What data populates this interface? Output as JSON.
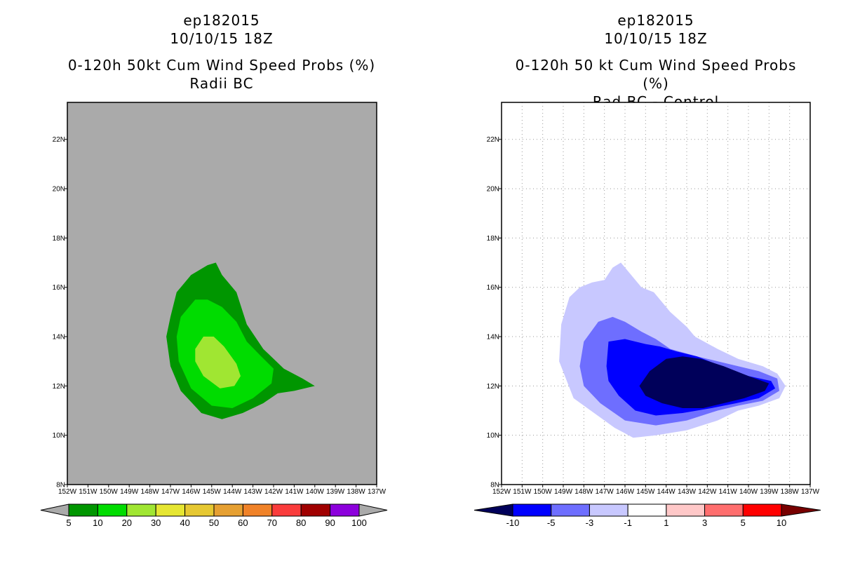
{
  "chart_data": [
    {
      "type": "filled-contour-map",
      "title_lines": [
        "ep182015",
        "10/10/15 18Z",
        "0-120h 50kt Cum Wind Speed Probs (%)",
        "Radii BC"
      ],
      "lon_ticks": [
        "152W",
        "151W",
        "150W",
        "149W",
        "148W",
        "147W",
        "146W",
        "145W",
        "144W",
        "143W",
        "142W",
        "141W",
        "140W",
        "139W",
        "138W",
        "137W"
      ],
      "lat_ticks": [
        "8N",
        "10N",
        "12N",
        "14N",
        "16N",
        "18N",
        "20N",
        "22N"
      ],
      "xlim": [
        -152,
        -137
      ],
      "ylim": [
        8,
        23.5
      ],
      "background_color": "#aaaaaa",
      "grid": false,
      "colorbar": {
        "levels": [
          "5",
          "10",
          "20",
          "30",
          "40",
          "50",
          "60",
          "70",
          "80",
          "90",
          "100"
        ],
        "colors": [
          "#009600",
          "#00dc00",
          "#a0e632",
          "#e6e632",
          "#e6c832",
          "#e6a032",
          "#f08228",
          "#fa3c3c",
          "#a00000",
          "#8c00dc"
        ]
      },
      "contours": [
        {
          "level": "5",
          "color": "#009600",
          "points": [
            [
              -147.2,
              14.0
            ],
            [
              -147.0,
              14.8
            ],
            [
              -146.7,
              15.8
            ],
            [
              -146.0,
              16.5
            ],
            [
              -145.2,
              16.9
            ],
            [
              -144.8,
              17.0
            ],
            [
              -144.5,
              16.5
            ],
            [
              -143.8,
              15.8
            ],
            [
              -143.3,
              14.5
            ],
            [
              -142.5,
              13.5
            ],
            [
              -141.5,
              12.7
            ],
            [
              -140.6,
              12.3
            ],
            [
              -140.0,
              12.0
            ],
            [
              -141.0,
              11.8
            ],
            [
              -141.8,
              11.7
            ],
            [
              -142.5,
              11.3
            ],
            [
              -143.5,
              10.9
            ],
            [
              -144.5,
              10.65
            ],
            [
              -145.5,
              10.9
            ],
            [
              -146.5,
              11.8
            ],
            [
              -147.0,
              12.8
            ]
          ]
        },
        {
          "level": "10",
          "color": "#00dc00",
          "points": [
            [
              -146.7,
              14.0
            ],
            [
              -146.5,
              14.8
            ],
            [
              -145.8,
              15.5
            ],
            [
              -145.2,
              15.5
            ],
            [
              -144.5,
              15.2
            ],
            [
              -143.8,
              14.6
            ],
            [
              -143.3,
              13.8
            ],
            [
              -142.6,
              13.2
            ],
            [
              -142.0,
              12.7
            ],
            [
              -142.1,
              12.1
            ],
            [
              -143.0,
              11.5
            ],
            [
              -144.0,
              11.1
            ],
            [
              -145.0,
              11.2
            ],
            [
              -146.0,
              11.9
            ],
            [
              -146.6,
              13.0
            ]
          ]
        },
        {
          "level": "20",
          "color": "#a0e632",
          "points": [
            [
              -145.8,
              13.5
            ],
            [
              -145.4,
              14.0
            ],
            [
              -144.9,
              14.0
            ],
            [
              -144.4,
              13.6
            ],
            [
              -143.8,
              12.9
            ],
            [
              -143.6,
              12.4
            ],
            [
              -143.9,
              12.0
            ],
            [
              -144.6,
              11.9
            ],
            [
              -145.4,
              12.4
            ],
            [
              -145.8,
              13.0
            ]
          ]
        }
      ]
    },
    {
      "type": "filled-contour-map",
      "title_lines": [
        "ep182015",
        "10/10/15 18Z",
        "0-120h 50 kt Cum Wind Speed Probs (%)",
        "Rad BC - Control"
      ],
      "lon_ticks": [
        "152W",
        "151W",
        "150W",
        "149W",
        "148W",
        "147W",
        "146W",
        "145W",
        "144W",
        "143W",
        "142W",
        "141W",
        "140W",
        "139W",
        "138W",
        "137W"
      ],
      "lat_ticks": [
        "8N",
        "10N",
        "12N",
        "14N",
        "16N",
        "18N",
        "20N",
        "22N"
      ],
      "xlim": [
        -152,
        -137
      ],
      "ylim": [
        8,
        23.5
      ],
      "background_color": "#ffffff",
      "grid": true,
      "colorbar": {
        "levels": [
          "-10",
          "-5",
          "-3",
          "-1",
          "1",
          "3",
          "5",
          "10"
        ],
        "colors": [
          "#00005a",
          "#0000ff",
          "#6e6eff",
          "#c8c8ff",
          "#ffffff",
          "#ffc8c8",
          "#ff6e6e",
          "#ff0000",
          "#780000"
        ]
      },
      "contours": [
        {
          "level": "-1",
          "color": "#c8c8ff",
          "points": [
            [
              -149.2,
              13.0
            ],
            [
              -149.1,
              14.5
            ],
            [
              -148.7,
              15.6
            ],
            [
              -148.2,
              16.0
            ],
            [
              -147.6,
              16.2
            ],
            [
              -147.0,
              16.3
            ],
            [
              -146.6,
              16.8
            ],
            [
              -146.2,
              17.0
            ],
            [
              -145.8,
              16.6
            ],
            [
              -145.2,
              16.0
            ],
            [
              -144.6,
              15.8
            ],
            [
              -143.8,
              15.0
            ],
            [
              -143.0,
              14.4
            ],
            [
              -142.6,
              14.0
            ],
            [
              -141.5,
              13.5
            ],
            [
              -140.5,
              13.1
            ],
            [
              -139.3,
              12.8
            ],
            [
              -138.6,
              12.5
            ],
            [
              -138.2,
              12.0
            ],
            [
              -138.5,
              11.5
            ],
            [
              -139.5,
              11.2
            ],
            [
              -140.5,
              11.0
            ],
            [
              -141.5,
              10.6
            ],
            [
              -143.0,
              10.2
            ],
            [
              -144.5,
              10.0
            ],
            [
              -145.6,
              9.9
            ],
            [
              -146.5,
              10.3
            ],
            [
              -147.5,
              10.9
            ],
            [
              -148.5,
              11.5
            ]
          ]
        },
        {
          "level": "-3",
          "color": "#6e6eff",
          "points": [
            [
              -148.2,
              12.8
            ],
            [
              -148.0,
              13.8
            ],
            [
              -147.3,
              14.6
            ],
            [
              -146.6,
              14.8
            ],
            [
              -146.0,
              14.6
            ],
            [
              -145.2,
              14.2
            ],
            [
              -144.5,
              13.9
            ],
            [
              -143.8,
              13.5
            ],
            [
              -142.5,
              13.2
            ],
            [
              -141.0,
              12.9
            ],
            [
              -139.5,
              12.6
            ],
            [
              -138.6,
              12.3
            ],
            [
              -138.5,
              11.8
            ],
            [
              -139.3,
              11.4
            ],
            [
              -140.5,
              11.2
            ],
            [
              -141.5,
              11.0
            ],
            [
              -143.0,
              10.6
            ],
            [
              -144.5,
              10.4
            ],
            [
              -146.0,
              10.6
            ],
            [
              -147.2,
              11.3
            ],
            [
              -148.0,
              12.0
            ]
          ]
        },
        {
          "level": "-5",
          "color": "#0000ff",
          "points": [
            [
              -146.9,
              12.8
            ],
            [
              -146.8,
              13.8
            ],
            [
              -146.0,
              13.9
            ],
            [
              -145.0,
              13.7
            ],
            [
              -144.3,
              13.6
            ],
            [
              -143.5,
              13.4
            ],
            [
              -142.5,
              13.2
            ],
            [
              -141.3,
              12.8
            ],
            [
              -140.0,
              12.4
            ],
            [
              -138.9,
              12.2
            ],
            [
              -138.7,
              11.9
            ],
            [
              -139.5,
              11.5
            ],
            [
              -140.6,
              11.3
            ],
            [
              -141.8,
              11.1
            ],
            [
              -143.2,
              10.9
            ],
            [
              -144.5,
              10.8
            ],
            [
              -145.5,
              11.0
            ],
            [
              -146.3,
              11.6
            ],
            [
              -146.8,
              12.2
            ]
          ]
        },
        {
          "level": "-10",
          "color": "#00005a",
          "points": [
            [
              -145.3,
              12.0
            ],
            [
              -144.8,
              12.6
            ],
            [
              -144.0,
              13.1
            ],
            [
              -143.2,
              13.2
            ],
            [
              -142.3,
              13.1
            ],
            [
              -141.2,
              12.8
            ],
            [
              -140.0,
              12.4
            ],
            [
              -139.0,
              12.1
            ],
            [
              -139.2,
              11.8
            ],
            [
              -140.2,
              11.5
            ],
            [
              -141.2,
              11.3
            ],
            [
              -142.2,
              11.1
            ],
            [
              -143.2,
              11.1
            ],
            [
              -144.2,
              11.3
            ],
            [
              -145.0,
              11.6
            ]
          ]
        }
      ]
    }
  ]
}
